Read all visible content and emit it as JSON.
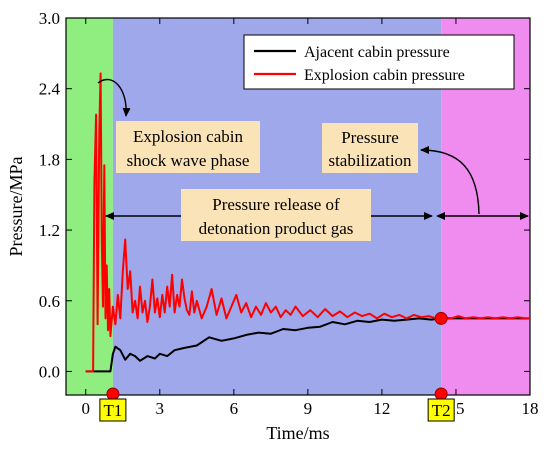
{
  "chart_data": {
    "type": "line",
    "xlabel": "Time/ms",
    "ylabel": "Pressure/MPa",
    "xlim": [
      -0.8,
      18
    ],
    "ylim": [
      -0.2,
      3.0
    ],
    "x_ticks": [
      0,
      3,
      6,
      9,
      12,
      15,
      18
    ],
    "y_ticks": [
      "0.0",
      "0.6",
      "1.2",
      "1.8",
      "2.4",
      "3.0"
    ],
    "phases": [
      {
        "x_start": -0.8,
        "x_end": 1.1,
        "color": "#90ee80"
      },
      {
        "x_start": 1.1,
        "x_end": 14.4,
        "color": "#a0a8ec"
      },
      {
        "x_start": 14.4,
        "x_end": 18,
        "color": "#f08cf0"
      }
    ],
    "series": [
      {
        "name": "Ajacent cabin pressure",
        "color": "#000000",
        "x": [
          0,
          1.0,
          1.1,
          1.2,
          1.4,
          1.6,
          1.8,
          2.0,
          2.2,
          2.5,
          2.8,
          3.0,
          3.3,
          3.6,
          4.0,
          4.5,
          5.0,
          5.5,
          6.0,
          6.5,
          7.0,
          7.5,
          8.0,
          8.5,
          9.0,
          9.5,
          10.0,
          10.5,
          11.0,
          11.5,
          12.0,
          12.5,
          13.0,
          13.5,
          14.0,
          14.4,
          15.0,
          16.0,
          17.0,
          18.0
        ],
        "values": [
          0.0,
          0.0,
          0.15,
          0.21,
          0.18,
          0.1,
          0.15,
          0.13,
          0.09,
          0.13,
          0.11,
          0.15,
          0.13,
          0.18,
          0.2,
          0.22,
          0.29,
          0.26,
          0.28,
          0.31,
          0.33,
          0.32,
          0.36,
          0.35,
          0.37,
          0.38,
          0.42,
          0.4,
          0.43,
          0.42,
          0.44,
          0.43,
          0.44,
          0.45,
          0.44,
          0.45,
          0.45,
          0.45,
          0.45,
          0.45
        ]
      },
      {
        "name": "Explosion cabin pressure",
        "color": "#ff0000",
        "x": [
          0.0,
          0.3,
          0.35,
          0.42,
          0.48,
          0.55,
          0.6,
          0.65,
          0.7,
          0.75,
          0.8,
          0.85,
          0.9,
          0.95,
          1.0,
          1.1,
          1.2,
          1.3,
          1.4,
          1.5,
          1.6,
          1.7,
          1.8,
          1.9,
          2.0,
          2.1,
          2.2,
          2.3,
          2.4,
          2.5,
          2.6,
          2.7,
          2.8,
          2.9,
          3.0,
          3.1,
          3.2,
          3.3,
          3.4,
          3.5,
          3.6,
          3.7,
          3.8,
          3.9,
          4.0,
          4.1,
          4.2,
          4.3,
          4.4,
          4.5,
          4.7,
          4.9,
          5.1,
          5.3,
          5.5,
          5.7,
          5.9,
          6.1,
          6.3,
          6.5,
          6.7,
          6.9,
          7.1,
          7.3,
          7.5,
          7.7,
          7.9,
          8.1,
          8.3,
          8.5,
          8.8,
          9.1,
          9.4,
          9.7,
          10.0,
          10.3,
          10.6,
          10.9,
          11.2,
          11.5,
          11.8,
          12.1,
          12.4,
          12.7,
          13.0,
          13.3,
          13.6,
          13.9,
          14.2,
          14.5,
          14.8,
          15.1,
          15.4,
          15.7,
          16.0,
          16.3,
          16.6,
          16.9,
          17.2,
          17.5,
          17.8,
          18.0
        ],
        "values": [
          0.0,
          0.0,
          1.6,
          2.18,
          0.4,
          2.05,
          2.53,
          1.1,
          0.55,
          1.75,
          0.45,
          0.9,
          0.35,
          0.7,
          0.3,
          0.55,
          0.4,
          0.65,
          0.45,
          0.85,
          1.12,
          0.7,
          0.85,
          0.5,
          0.6,
          0.45,
          0.72,
          0.5,
          0.6,
          0.42,
          0.55,
          0.78,
          0.5,
          0.62,
          0.46,
          0.65,
          0.5,
          0.72,
          0.55,
          0.82,
          0.5,
          0.65,
          0.55,
          0.78,
          0.62,
          0.52,
          0.48,
          0.68,
          0.5,
          0.6,
          0.45,
          0.55,
          0.7,
          0.48,
          0.62,
          0.45,
          0.55,
          0.65,
          0.5,
          0.58,
          0.46,
          0.55,
          0.48,
          0.58,
          0.5,
          0.55,
          0.46,
          0.52,
          0.48,
          0.55,
          0.47,
          0.52,
          0.46,
          0.53,
          0.47,
          0.51,
          0.46,
          0.5,
          0.47,
          0.49,
          0.45,
          0.49,
          0.46,
          0.48,
          0.45,
          0.48,
          0.46,
          0.47,
          0.45,
          0.46,
          0.45,
          0.47,
          0.45,
          0.46,
          0.45,
          0.46,
          0.45,
          0.46,
          0.45,
          0.46,
          0.45,
          0.45
        ]
      }
    ],
    "markers": [
      {
        "label": "T1",
        "x": 1.1
      },
      {
        "label": "T2",
        "x": 14.4
      }
    ],
    "intersection_point": {
      "x": 14.4,
      "y": 0.45
    },
    "annotations": {
      "shock_line1": "Explosion cabin",
      "shock_line2": "shock wave phase",
      "release_line1": "Pressure release of",
      "release_line2": "detonation product gas",
      "stab_line1": "Pressure",
      "stab_line2": "stabilization"
    },
    "legend": {
      "position": "top-right"
    }
  }
}
